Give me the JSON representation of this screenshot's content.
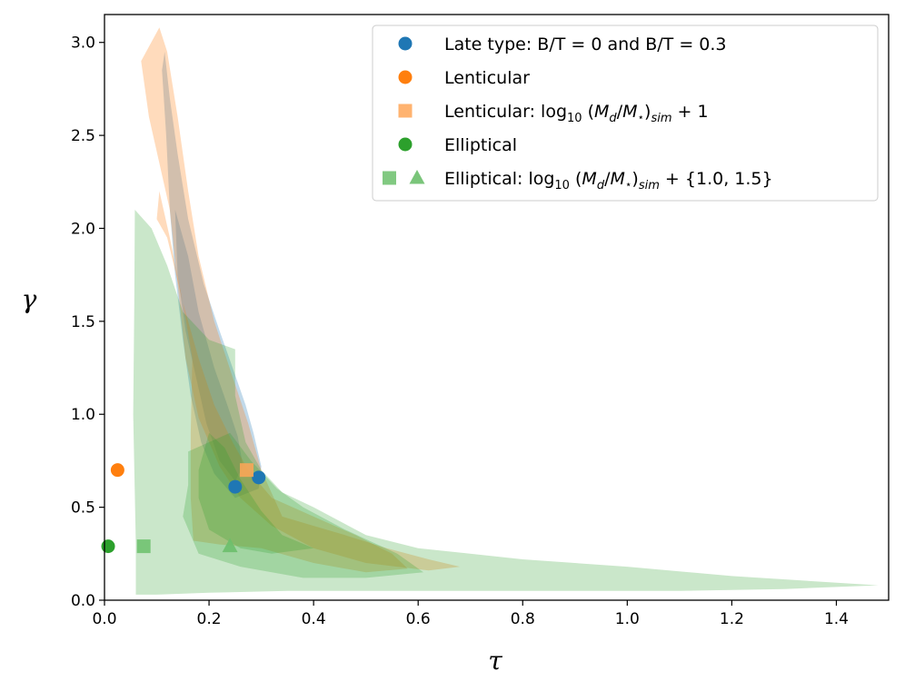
{
  "chart_data": {
    "type": "scatter",
    "title": "",
    "xlabel": "τ",
    "ylabel": "γ",
    "xlim": [
      0.0,
      1.5
    ],
    "ylim": [
      0.0,
      3.15
    ],
    "x_ticks": [
      "0.0",
      "0.2",
      "0.4",
      "0.6",
      "0.8",
      "1.0",
      "1.2",
      "1.4"
    ],
    "y_ticks": [
      "0.0",
      "0.5",
      "1.0",
      "1.5",
      "2.0",
      "2.5",
      "3.0"
    ],
    "grid": false,
    "legend_position": "top-right",
    "colors": {
      "blue": "#1f77b4",
      "orange": "#ff7f0e",
      "green": "#2ca02c",
      "light_orange": "#ffa657",
      "light_green": "#6bbf6b"
    },
    "legend": [
      {
        "label": "Late type: B/T = 0 and B/T = 0.3",
        "marker": "circle",
        "color": "#1f77b4"
      },
      {
        "label": "Lenticular",
        "marker": "circle",
        "color": "#ff7f0e"
      },
      {
        "label": "Lenticular: log",
        "sub": "10",
        "rest": " (M",
        "rest_sub": "d",
        "rest2": "/M",
        "rest2_sub": "⋆",
        "rest3": ")",
        "rest3_sub": "sim",
        "tail": " + 1",
        "marker": "square",
        "color": "#ffa657"
      },
      {
        "label": "Elliptical",
        "marker": "circle",
        "color": "#2ca02c"
      },
      {
        "label": "Elliptical: log",
        "sub": "10",
        "rest": " (M",
        "rest_sub": "d",
        "rest2": "/M",
        "rest2_sub": "⋆",
        "rest3": ")",
        "rest3_sub": "sim",
        "tail": " + {1.0, 1.5}",
        "marker": "square+triangle",
        "color": "#6bbf6b"
      }
    ],
    "series": [
      {
        "group": "late_type",
        "marker": "circle",
        "color": "#1f77b4",
        "points": [
          [
            0.25,
            0.61
          ],
          [
            0.295,
            0.66
          ]
        ]
      },
      {
        "group": "lenticular",
        "marker": "circle",
        "color": "#ff7f0e",
        "points": [
          [
            0.025,
            0.7
          ]
        ]
      },
      {
        "group": "lenticular_sim",
        "marker": "square",
        "color": "#ffa657",
        "points": [
          [
            0.272,
            0.7
          ]
        ]
      },
      {
        "group": "elliptical",
        "marker": "circle",
        "color": "#2ca02c",
        "points": [
          [
            0.007,
            0.29
          ]
        ]
      },
      {
        "group": "elliptical_sim_1.0",
        "marker": "square",
        "color": "#6bbf6b",
        "points": [
          [
            0.075,
            0.29
          ]
        ]
      },
      {
        "group": "elliptical_sim_1.5",
        "marker": "triangle",
        "color": "#6bbf6b",
        "points": [
          [
            0.24,
            0.29
          ]
        ]
      }
    ],
    "regions": [
      {
        "group": "late_type",
        "color": "#1f77b4",
        "opacity": 0.28,
        "outline": [
          [
            0.115,
            2.95
          ],
          [
            0.125,
            2.7
          ],
          [
            0.14,
            2.4
          ],
          [
            0.16,
            2.05
          ],
          [
            0.19,
            1.7
          ],
          [
            0.22,
            1.45
          ],
          [
            0.245,
            1.25
          ],
          [
            0.27,
            1.05
          ],
          [
            0.285,
            0.9
          ],
          [
            0.3,
            0.72
          ],
          [
            0.295,
            0.6
          ],
          [
            0.25,
            0.55
          ],
          [
            0.21,
            0.68
          ],
          [
            0.185,
            0.85
          ],
          [
            0.165,
            1.1
          ],
          [
            0.15,
            1.4
          ],
          [
            0.135,
            1.75
          ],
          [
            0.125,
            2.1
          ],
          [
            0.118,
            2.5
          ],
          [
            0.11,
            2.85
          ]
        ]
      },
      {
        "group": "late_type",
        "color": "#1f77b4",
        "opacity": 0.28,
        "outline": [
          [
            0.135,
            2.1
          ],
          [
            0.16,
            1.85
          ],
          [
            0.18,
            1.55
          ],
          [
            0.21,
            1.25
          ],
          [
            0.235,
            1.05
          ],
          [
            0.255,
            0.88
          ],
          [
            0.265,
            0.72
          ],
          [
            0.25,
            0.64
          ],
          [
            0.22,
            0.75
          ],
          [
            0.195,
            0.95
          ],
          [
            0.175,
            1.2
          ],
          [
            0.155,
            1.45
          ],
          [
            0.14,
            1.75
          ]
        ]
      },
      {
        "group": "lenticular",
        "color": "#ff7f0e",
        "opacity": 0.28,
        "outline": [
          [
            0.105,
            3.08
          ],
          [
            0.12,
            2.95
          ],
          [
            0.14,
            2.6
          ],
          [
            0.16,
            2.2
          ],
          [
            0.18,
            1.85
          ],
          [
            0.21,
            1.5
          ],
          [
            0.245,
            1.2
          ],
          [
            0.275,
            0.95
          ],
          [
            0.3,
            0.7
          ],
          [
            0.34,
            0.45
          ],
          [
            0.4,
            0.4
          ],
          [
            0.46,
            0.35
          ],
          [
            0.54,
            0.28
          ],
          [
            0.62,
            0.22
          ],
          [
            0.68,
            0.18
          ],
          [
            0.62,
            0.16
          ],
          [
            0.5,
            0.2
          ],
          [
            0.4,
            0.28
          ],
          [
            0.32,
            0.4
          ],
          [
            0.26,
            0.55
          ],
          [
            0.22,
            0.72
          ],
          [
            0.18,
            0.98
          ],
          [
            0.155,
            1.3
          ],
          [
            0.14,
            1.7
          ],
          [
            0.125,
            2.1
          ],
          [
            0.105,
            2.35
          ],
          [
            0.085,
            2.6
          ],
          [
            0.07,
            2.9
          ]
        ]
      },
      {
        "group": "lenticular",
        "color": "#ff7f0e",
        "opacity": 0.28,
        "outline": [
          [
            0.105,
            2.2
          ],
          [
            0.125,
            1.95
          ],
          [
            0.15,
            1.6
          ],
          [
            0.18,
            1.3
          ],
          [
            0.21,
            1.05
          ],
          [
            0.245,
            0.85
          ],
          [
            0.275,
            0.7
          ],
          [
            0.32,
            0.55
          ],
          [
            0.4,
            0.45
          ],
          [
            0.48,
            0.35
          ],
          [
            0.55,
            0.25
          ],
          [
            0.58,
            0.17
          ],
          [
            0.5,
            0.15
          ],
          [
            0.4,
            0.2
          ],
          [
            0.3,
            0.28
          ],
          [
            0.22,
            0.3
          ],
          [
            0.17,
            0.32
          ],
          [
            0.165,
            0.55
          ],
          [
            0.165,
            0.9
          ],
          [
            0.168,
            1.3
          ],
          [
            0.15,
            1.6
          ],
          [
            0.12,
            1.95
          ],
          [
            0.1,
            2.05
          ]
        ]
      },
      {
        "group": "elliptical",
        "color": "#2ca02c",
        "opacity": 0.25,
        "outline": [
          [
            0.058,
            2.1
          ],
          [
            0.09,
            2.0
          ],
          [
            0.12,
            1.8
          ],
          [
            0.15,
            1.55
          ],
          [
            0.2,
            1.4
          ],
          [
            0.25,
            1.35
          ],
          [
            0.25,
            1.1
          ],
          [
            0.27,
            0.85
          ],
          [
            0.3,
            0.7
          ],
          [
            0.34,
            0.58
          ],
          [
            0.4,
            0.5
          ],
          [
            0.5,
            0.35
          ],
          [
            0.6,
            0.28
          ],
          [
            0.8,
            0.22
          ],
          [
            1.0,
            0.18
          ],
          [
            1.2,
            0.13
          ],
          [
            1.48,
            0.08
          ],
          [
            1.3,
            0.06
          ],
          [
            1.1,
            0.05
          ],
          [
            0.9,
            0.05
          ],
          [
            0.7,
            0.05
          ],
          [
            0.5,
            0.05
          ],
          [
            0.35,
            0.05
          ],
          [
            0.2,
            0.04
          ],
          [
            0.1,
            0.03
          ],
          [
            0.06,
            0.03
          ],
          [
            0.06,
            0.3
          ],
          [
            0.055,
            1.0
          ],
          [
            0.057,
            1.6
          ]
        ]
      },
      {
        "group": "elliptical",
        "color": "#2ca02c",
        "opacity": 0.25,
        "outline": [
          [
            0.16,
            0.8
          ],
          [
            0.2,
            0.85
          ],
          [
            0.24,
            0.9
          ],
          [
            0.28,
            0.75
          ],
          [
            0.33,
            0.6
          ],
          [
            0.38,
            0.5
          ],
          [
            0.46,
            0.38
          ],
          [
            0.56,
            0.25
          ],
          [
            0.61,
            0.15
          ],
          [
            0.5,
            0.12
          ],
          [
            0.38,
            0.12
          ],
          [
            0.26,
            0.18
          ],
          [
            0.18,
            0.25
          ],
          [
            0.15,
            0.45
          ],
          [
            0.16,
            0.62
          ]
        ]
      },
      {
        "group": "elliptical",
        "color": "#2ca02c",
        "opacity": 0.25,
        "outline": [
          [
            0.18,
            0.7
          ],
          [
            0.2,
            0.9
          ],
          [
            0.23,
            0.82
          ],
          [
            0.26,
            0.65
          ],
          [
            0.3,
            0.48
          ],
          [
            0.34,
            0.35
          ],
          [
            0.4,
            0.28
          ],
          [
            0.32,
            0.25
          ],
          [
            0.26,
            0.28
          ],
          [
            0.2,
            0.38
          ],
          [
            0.18,
            0.55
          ]
        ]
      }
    ]
  }
}
